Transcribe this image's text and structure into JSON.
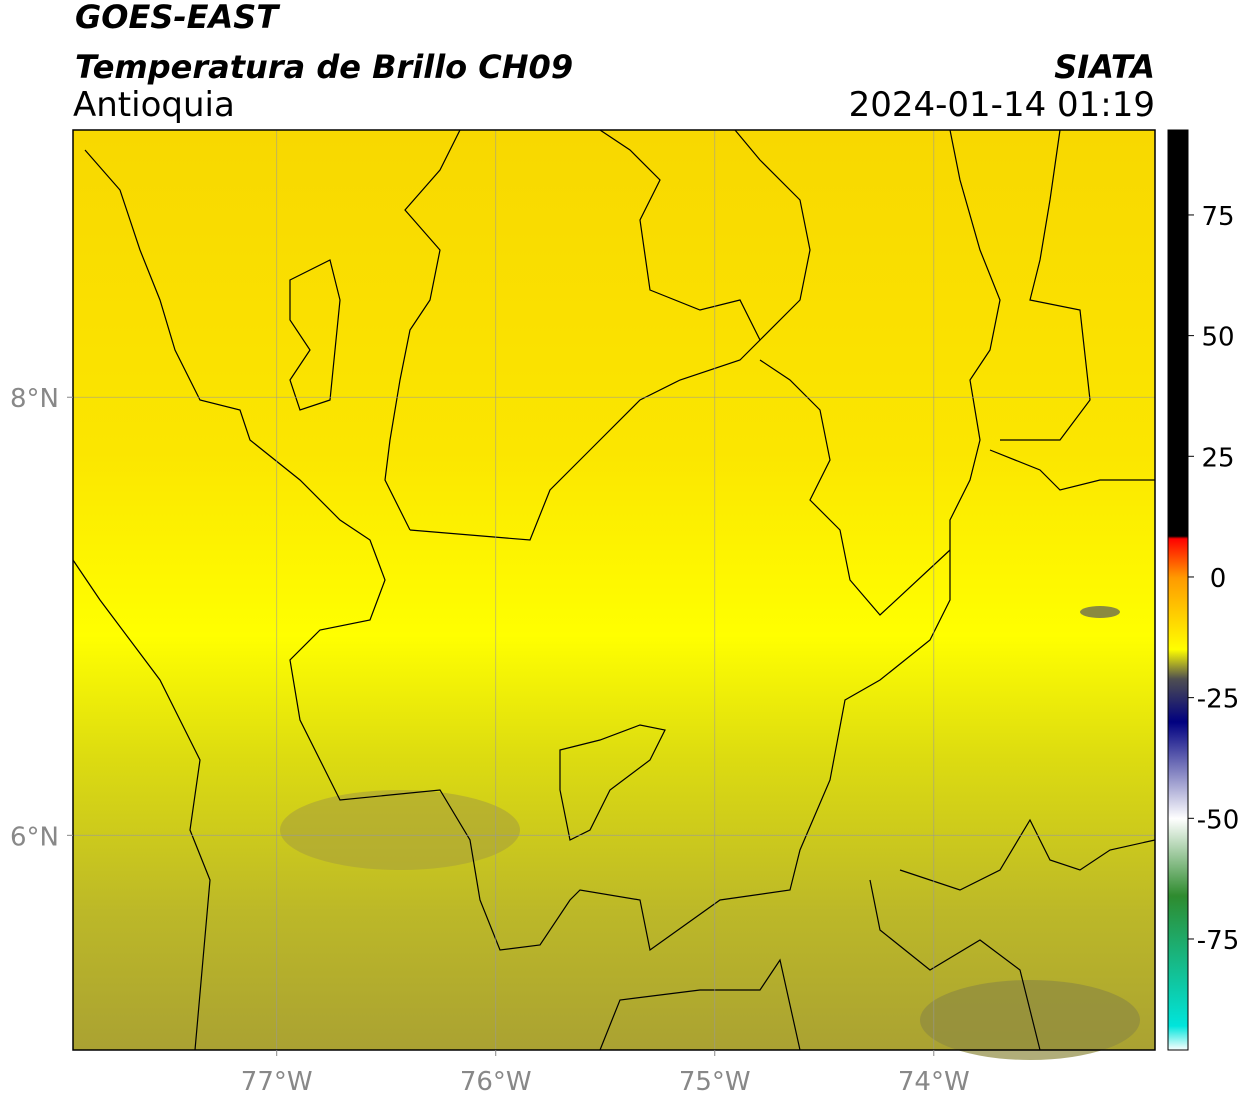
{
  "map": {
    "title": "GOES-EAST",
    "subtitle": "Temperatura de Brillo CH09",
    "region": "Antioquia",
    "source": "SIATA",
    "datetime": "2024-01-14 01:19",
    "lonlim": [
      -77.93,
      -72.99
    ],
    "latlim": [
      5.02,
      9.22
    ],
    "lonticks": [
      {
        "value": -77,
        "label": "77°W"
      },
      {
        "value": -76,
        "label": "76°W"
      },
      {
        "value": -75,
        "label": "75°W"
      },
      {
        "value": -74,
        "label": "74°W"
      }
    ],
    "latticks": [
      {
        "value": 8,
        "label": "8°N"
      },
      {
        "value": 6,
        "label": "6°N"
      }
    ],
    "grid": true,
    "colorbar": {
      "lim": [
        -98,
        92.6
      ],
      "ticks": [
        75,
        50,
        25,
        0,
        -25,
        -50,
        -75
      ],
      "stops": [
        {
          "value": -98,
          "color": "#ffffff"
        },
        {
          "value": -93,
          "color": "#00e5dc"
        },
        {
          "value": -66,
          "color": "#2e8b2e"
        },
        {
          "value": -50,
          "color": "#ffffff"
        },
        {
          "value": -30,
          "color": "#000080"
        },
        {
          "value": -21,
          "color": "#505050"
        },
        {
          "value": -15,
          "color": "#ffff00"
        },
        {
          "value": 0,
          "color": "#ff9900"
        },
        {
          "value": 8,
          "color": "#ff0000"
        },
        {
          "value": 8.5,
          "color": "#000000"
        },
        {
          "value": 92.6,
          "color": "#000000"
        }
      ]
    }
  }
}
